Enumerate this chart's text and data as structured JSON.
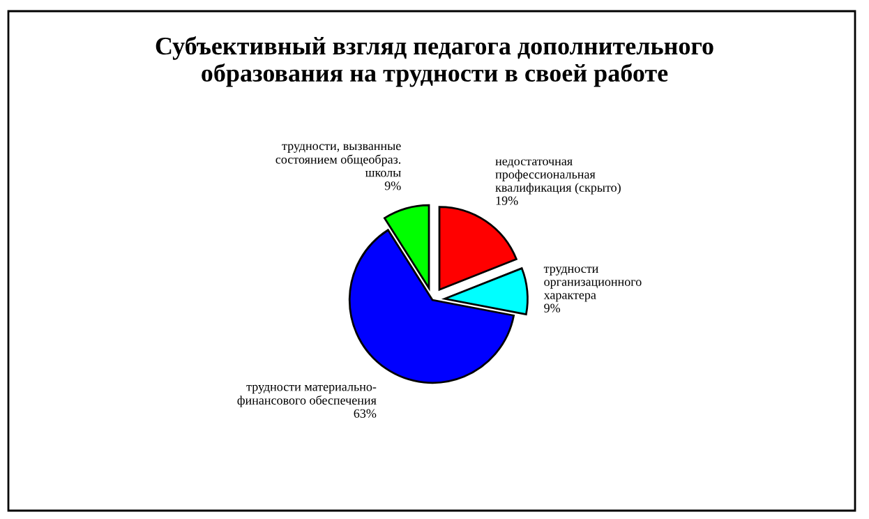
{
  "chart_data": {
    "type": "pie",
    "title": "Субъективный взгляд педагога дополнительного\nобразования на трудности в своей работе",
    "categories": [
      "недостаточная\nпрофессиональная\nквалификация (скрыто)",
      "трудности\nорганизационного\nхарактера",
      "трудности материально-\nфинансового обеспечения",
      "трудности, вызванные\nсостоянием общеобраз.\nшколы"
    ],
    "values": [
      19,
      9,
      63,
      9
    ],
    "value_labels": [
      "19%",
      "9%",
      "63%",
      "9%"
    ],
    "colors": [
      "#ff0000",
      "#00ffff",
      "#0000ff",
      "#00ff00"
    ],
    "legend": false
  }
}
